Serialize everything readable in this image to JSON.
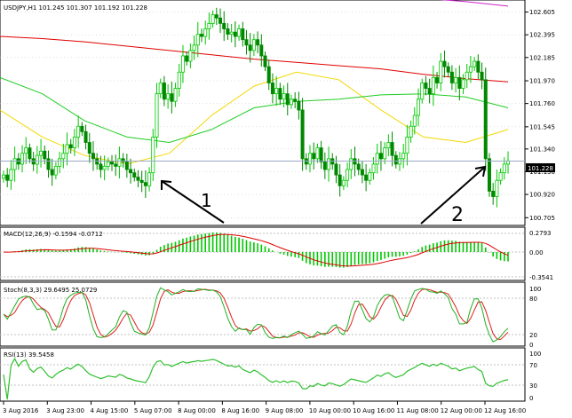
{
  "main": {
    "header": "USDJPY,H1  101.245 101.307 101.192 101.228",
    "price_ticks": [
      "102.605",
      "102.395",
      "102.185",
      "101.970",
      "101.760",
      "101.545",
      "101.340",
      "101.130",
      "100.920",
      "100.705"
    ],
    "current_price": "101.228",
    "annotations": [
      "1",
      "2"
    ]
  },
  "macd": {
    "header": "MACD(12,26,9) -0.1594 -0.0712",
    "ticks": [
      "0.2793",
      "0.00",
      "-0.3541"
    ]
  },
  "stoch": {
    "header": "Stoch(8,3,3) 29.6495 25.0729",
    "ticks": [
      "100",
      "80",
      "20",
      "0"
    ]
  },
  "rsi": {
    "header": "RSI(13) 39.5458",
    "ticks": [
      "100",
      "70",
      "30",
      "0"
    ]
  },
  "time_axis": [
    "3 Aug 2016",
    "3 Aug 23:00",
    "4 Aug 15:00",
    "5 Aug 07:00",
    "8 Aug 00:00",
    "8 Aug 16:00",
    "9 Aug 08:00",
    "10 Aug 00:00",
    "10 Aug 16:00",
    "11 Aug 08:00",
    "12 Aug 00:00",
    "12 Aug 16:00"
  ],
  "colors": {
    "bull": "#00c800",
    "bear": "#008800",
    "ma_red": "#e00000",
    "ma_yellow": "#f2d800",
    "ma_green": "#22cc22",
    "ma_magenta": "#cc22cc",
    "grid": "#c0c0c0",
    "price_line": "#9aa8c8",
    "stoch_main": "#20b020",
    "stoch_signal": "#dd2020",
    "rsi": "#30c030"
  },
  "chart_data": {
    "type": "candlestick",
    "symbol": "USDJPY",
    "timeframe": "H1",
    "ohlc_header": {
      "open": 101.245,
      "high": 101.307,
      "low": 101.192,
      "close": 101.228
    },
    "price_ylim": [
      100.705,
      102.605
    ],
    "close_path": [
      101.1,
      101.05,
      101.15,
      101.25,
      101.2,
      101.3,
      101.35,
      101.25,
      101.2,
      101.28,
      101.32,
      101.25,
      101.15,
      101.1,
      101.18,
      101.25,
      101.3,
      101.38,
      101.35,
      101.45,
      101.55,
      101.5,
      101.4,
      101.3,
      101.25,
      101.2,
      101.15,
      101.18,
      101.22,
      101.2,
      101.18,
      101.25,
      101.22,
      101.15,
      101.12,
      101.08,
      101.05,
      101.03,
      101.0,
      101.12,
      101.45,
      101.85,
      101.95,
      101.8,
      101.85,
      101.78,
      101.9,
      102.05,
      102.2,
      102.15,
      102.25,
      102.3,
      102.4,
      102.38,
      102.45,
      102.5,
      102.58,
      102.55,
      102.5,
      102.45,
      102.4,
      102.42,
      102.38,
      102.45,
      102.35,
      102.3,
      102.25,
      102.35,
      102.3,
      102.2,
      102.1,
      101.95,
      101.85,
      101.9,
      101.8,
      101.85,
      101.75,
      101.8,
      101.78,
      101.7,
      101.25,
      101.2,
      101.3,
      101.25,
      101.35,
      101.22,
      101.15,
      101.25,
      101.2,
      101.1,
      101.0,
      101.05,
      101.15,
      101.25,
      101.2,
      101.15,
      101.1,
      101.05,
      101.12,
      101.2,
      101.3,
      101.25,
      101.35,
      101.4,
      101.28,
      101.2,
      101.25,
      101.3,
      101.45,
      101.55,
      101.65,
      101.8,
      101.95,
      101.9,
      101.85,
      102.0,
      101.95,
      102.15,
      102.1,
      102.05,
      101.95,
      102.0,
      101.9,
      101.98,
      102.05,
      102.1,
      102.15,
      102.05,
      101.98,
      101.25,
      100.95,
      100.9,
      101.05,
      101.12,
      101.2,
      101.23
    ],
    "moving_averages": [
      {
        "color": "red",
        "approx": [
          102.38,
          102.36,
          102.33,
          102.29,
          102.25,
          102.21,
          102.17,
          102.14,
          102.11,
          102.08,
          102.03,
          101.99,
          101.96
        ]
      },
      {
        "color": "yellow",
        "approx": [
          101.7,
          101.45,
          101.28,
          101.2,
          101.3,
          101.65,
          101.92,
          102.05,
          101.98,
          101.7,
          101.45,
          101.4,
          101.52
        ]
      },
      {
        "color": "green",
        "approx": [
          102.0,
          101.85,
          101.6,
          101.45,
          101.4,
          101.52,
          101.72,
          101.78,
          101.8,
          101.84,
          101.85,
          101.82,
          101.72
        ]
      },
      {
        "color": "magenta",
        "approx": [
          102.73,
          102.7,
          102.66
        ]
      }
    ],
    "macd": {
      "main": -0.1594,
      "signal": -0.0712,
      "ylim": [
        -0.3541,
        0.2793
      ]
    },
    "stochastic": {
      "main": 29.6495,
      "signal": 25.0729,
      "levels": [
        80,
        20
      ]
    },
    "rsi": {
      "value": 39.5458,
      "levels": [
        70,
        30
      ]
    }
  }
}
